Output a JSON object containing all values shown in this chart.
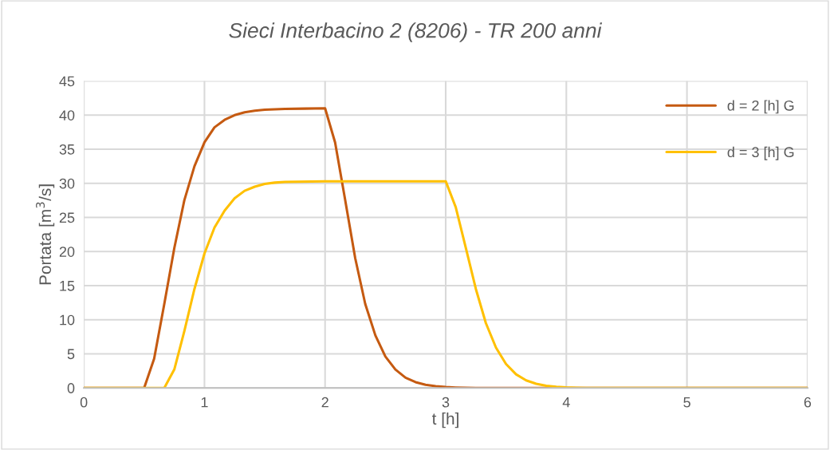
{
  "chart_data": {
    "type": "line",
    "title": "Sieci Interbacino 2 (8206) - TR 200 anni",
    "xlabel": "t [h]",
    "ylabel": "Portata [m$^{3}$/s]",
    "xlim": [
      0,
      6
    ],
    "ylim": [
      0,
      45
    ],
    "xticks": [
      0,
      1,
      2,
      3,
      4,
      5,
      6
    ],
    "yticks": [
      0,
      5,
      10,
      15,
      20,
      25,
      30,
      35,
      40,
      45
    ],
    "grid": true,
    "legend": "top right",
    "marker": "none",
    "line_style": "solid",
    "series": [
      {
        "name": "d = 2 [h] G",
        "color": "#c55a11",
        "x": [
          0,
          0.5,
          0.583,
          0.667,
          0.75,
          0.833,
          0.917,
          1.0,
          1.083,
          1.167,
          1.25,
          1.333,
          1.417,
          1.5,
          1.667,
          1.833,
          2.0,
          2.083,
          2.167,
          2.25,
          2.333,
          2.417,
          2.5,
          2.583,
          2.667,
          2.75,
          2.833,
          2.917,
          3.0,
          3.083,
          3.167,
          3.25,
          6
        ],
        "values": [
          0,
          0,
          4.3,
          12.3,
          20.5,
          27.5,
          32.5,
          36,
          38.2,
          39.3,
          40,
          40.4,
          40.65,
          40.8,
          40.9,
          40.95,
          41,
          36,
          27.5,
          19,
          12.3,
          7.7,
          4.6,
          2.7,
          1.5,
          0.85,
          0.45,
          0.25,
          0.12,
          0.06,
          0.03,
          0,
          0
        ]
      },
      {
        "name": "d = 3 [h] G",
        "color": "#ffc000",
        "x": [
          0,
          0.667,
          0.75,
          0.833,
          0.917,
          1.0,
          1.083,
          1.167,
          1.25,
          1.333,
          1.417,
          1.5,
          1.583,
          1.667,
          2.0,
          2.5,
          3.0,
          3.083,
          3.167,
          3.25,
          3.333,
          3.417,
          3.5,
          3.583,
          3.667,
          3.75,
          3.833,
          3.917,
          4.0,
          4.083,
          4.167,
          6
        ],
        "values": [
          0,
          0,
          2.7,
          8.3,
          14.5,
          19.7,
          23.5,
          26,
          27.8,
          28.9,
          29.5,
          29.9,
          30.1,
          30.2,
          30.3,
          30.3,
          30.3,
          26.5,
          20.5,
          14.5,
          9.5,
          5.9,
          3.5,
          2.0,
          1.1,
          0.6,
          0.3,
          0.15,
          0.07,
          0.03,
          0,
          0
        ]
      }
    ]
  }
}
